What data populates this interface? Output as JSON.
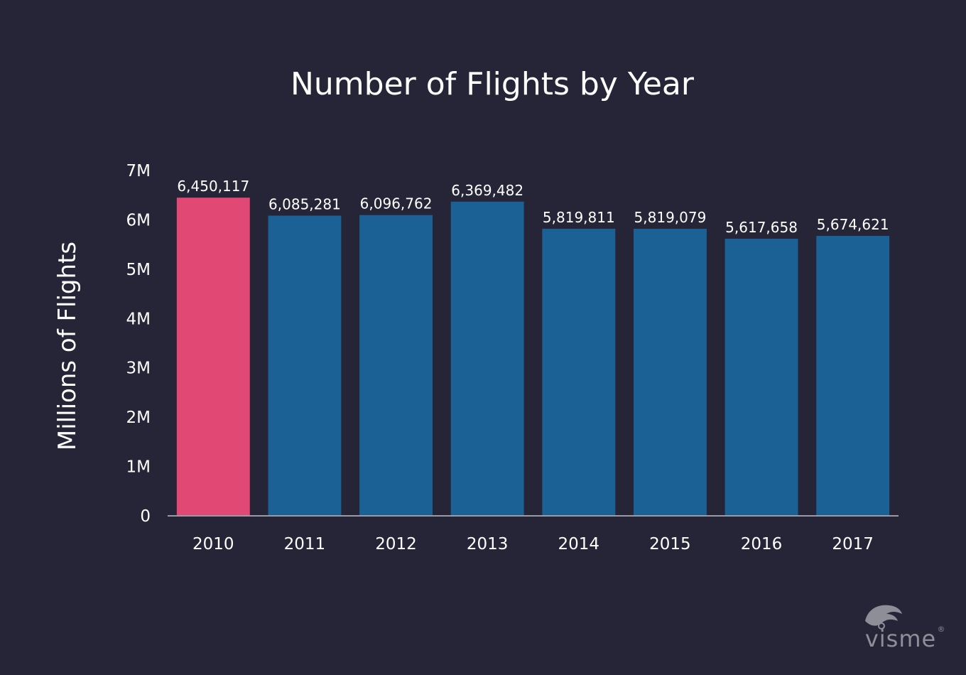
{
  "chart_data": {
    "type": "bar",
    "title": "Number of Flights by Year",
    "xlabel": "",
    "ylabel": "Millions of Flights",
    "categories": [
      "2010",
      "2011",
      "2012",
      "2013",
      "2014",
      "2015",
      "2016",
      "2017"
    ],
    "values": [
      6450117,
      6085281,
      6096762,
      6369482,
      5819811,
      5819079,
      5617658,
      5674621
    ],
    "value_labels": [
      "6,450,117",
      "6,085,281",
      "6,096,762",
      "6,369,482",
      "5,819,811",
      "5,819,079",
      "5,617,658",
      "5,674,621"
    ],
    "ylim": [
      0,
      7000000
    ],
    "yticks": [
      0,
      1000000,
      2000000,
      3000000,
      4000000,
      5000000,
      6000000,
      7000000
    ],
    "ytick_labels": [
      "0",
      "1M",
      "2M",
      "3M",
      "4M",
      "5M",
      "6M",
      "7M"
    ],
    "grid": false,
    "legend": "none",
    "colors": {
      "background": "#252537",
      "highlight_bar": "#e14874",
      "bar": "#1b6195",
      "axis": "#9a9aa6",
      "text": "#ffffff"
    },
    "highlight_index": 0
  },
  "branding": {
    "logo_text": "visme",
    "registered_mark": "®",
    "logo_icon": "visme-leaf-icon"
  }
}
